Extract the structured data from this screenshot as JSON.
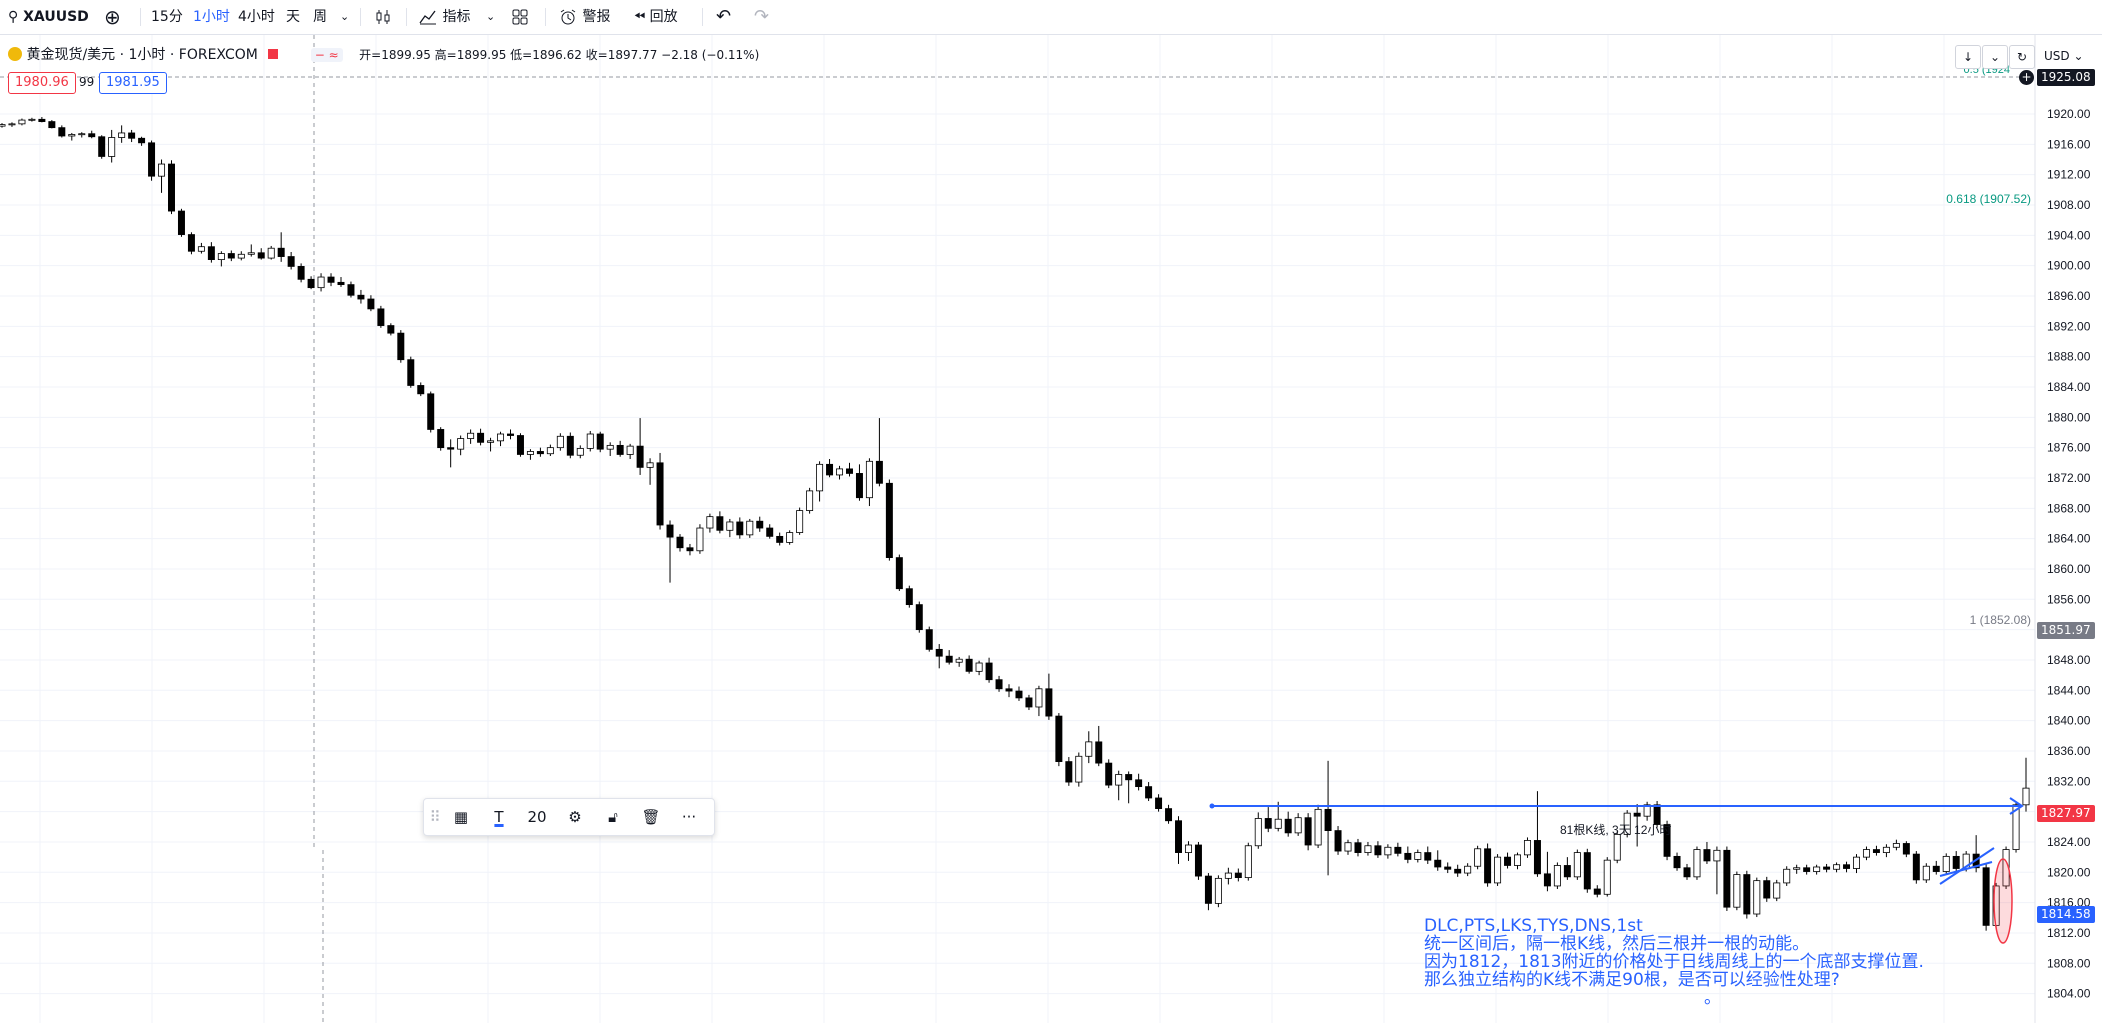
{
  "toolbar": {
    "symbol": "XAUUSD",
    "intervals": [
      "15分",
      "1小时",
      "4小时",
      "天",
      "周"
    ],
    "active_interval": "1小时",
    "indicators": "指标",
    "alert": "警报",
    "replay": "回放"
  },
  "legend": {
    "title": "黄金现货/美元 · 1小时 · FOREXCOM",
    "ohlc": "开=1899.95 高=1899.95 低=1896.62 收=1897.77 −2.18 (−0.11%)",
    "sell_price": "1980.96",
    "spread": "99",
    "buy_price": "1981.95"
  },
  "currency": "USD",
  "price_axis": {
    "labels": [
      "1920.00",
      "1916.00",
      "1912.00",
      "1908.00",
      "1904.00",
      "1900.00",
      "1896.00",
      "1892.00",
      "1888.00",
      "1884.00",
      "1880.00",
      "1876.00",
      "1872.00",
      "1868.00",
      "1864.00",
      "1860.00",
      "1856.00",
      "1852.00",
      "1848.00",
      "1844.00",
      "1840.00",
      "1836.00",
      "1832.00",
      "1828.00",
      "1824.00",
      "1820.00",
      "1816.00",
      "1812.00",
      "1808.00",
      "1804.00"
    ],
    "top_tag": "1925.08",
    "tag_1851": "1851.97",
    "tag_1827": "1827.97",
    "tag_1814": "1814.58"
  },
  "fib": {
    "level_618": "0.618 (1907.52)",
    "level_1": "1 (1852.08)",
    "level_05": "0.5 (1924"
  },
  "range_label": "81根K线, 3天 12小时",
  "annotation": {
    "line1": "DLC,PTS,LKS,TYS,DNS,1st",
    "line2": "统一区间后，隔一根K线，然后三根并一根的动能。",
    "line3": "因为1812，1813附近的价格处于日线周线上的一个底部支撑位置.",
    "line4": "那么独立结构的K线不满足90根，是否可以经验性处理?",
    "line5": "。"
  },
  "drawing_toolbar": {
    "font_size": "20"
  },
  "colors": {
    "up_body": "#ffffff",
    "down_body": "#000000",
    "wick": "#000000",
    "blue_line": "#2962ff",
    "sell": "#f23645",
    "buy": "#2962ff",
    "fib": "#089981"
  },
  "candles": [
    [
      1918.4,
      1918.8,
      1918.2,
      1918.6
    ],
    [
      1918.6,
      1918.9,
      1918.3,
      1918.7
    ],
    [
      1918.7,
      1919.4,
      1918.5,
      1919.2
    ],
    [
      1919.2,
      1919.5,
      1919.0,
      1919.3
    ],
    [
      1919.3,
      1919.6,
      1918.9,
      1919.0
    ],
    [
      1919.0,
      1919.2,
      1918.1,
      1918.2
    ],
    [
      1918.2,
      1918.5,
      1916.9,
      1917.1
    ],
    [
      1917.1,
      1917.5,
      1916.5,
      1917.3
    ],
    [
      1917.3,
      1917.6,
      1916.9,
      1917.4
    ],
    [
      1917.4,
      1917.8,
      1916.8,
      1917.0
    ],
    [
      1917.0,
      1917.2,
      1914.1,
      1914.4
    ],
    [
      1914.4,
      1917.9,
      1913.6,
      1916.9
    ],
    [
      1916.9,
      1918.5,
      1916.2,
      1917.5
    ],
    [
      1917.5,
      1917.9,
      1916.3,
      1916.8
    ],
    [
      1916.8,
      1917.0,
      1915.8,
      1916.2
    ],
    [
      1916.2,
      1916.5,
      1911.2,
      1911.8
    ],
    [
      1911.8,
      1914.0,
      1909.6,
      1913.4
    ],
    [
      1913.4,
      1913.9,
      1906.8,
      1907.2
    ],
    [
      1907.2,
      1907.5,
      1903.8,
      1904.1
    ],
    [
      1904.1,
      1904.4,
      1901.5,
      1901.9
    ],
    [
      1901.9,
      1903.0,
      1901.6,
      1902.5
    ],
    [
      1902.5,
      1903.1,
      1900.4,
      1900.8
    ],
    [
      1900.8,
      1901.9,
      1899.9,
      1901.6
    ],
    [
      1901.6,
      1902.0,
      1900.6,
      1901.0
    ],
    [
      1901.0,
      1901.9,
      1900.7,
      1901.5
    ],
    [
      1901.5,
      1902.8,
      1901.2,
      1901.7
    ],
    [
      1901.7,
      1902.3,
      1900.8,
      1901.0
    ],
    [
      1901.0,
      1902.6,
      1900.8,
      1902.3
    ],
    [
      1902.3,
      1904.4,
      1900.5,
      1901.2
    ],
    [
      1901.2,
      1901.8,
      1899.5,
      1899.9
    ],
    [
      1899.9,
      1900.3,
      1897.8,
      1898.2
    ],
    [
      1898.2,
      1898.6,
      1896.9,
      1897.1
    ],
    [
      1897.1,
      1899.0,
      1896.6,
      1898.5
    ],
    [
      1898.5,
      1899.0,
      1897.3,
      1897.8
    ],
    [
      1897.8,
      1898.5,
      1897.2,
      1897.5
    ],
    [
      1897.5,
      1897.9,
      1895.8,
      1896.1
    ],
    [
      1896.1,
      1896.8,
      1895.0,
      1895.6
    ],
    [
      1895.6,
      1896.1,
      1894.0,
      1894.3
    ],
    [
      1894.3,
      1894.7,
      1891.8,
      1892.1
    ],
    [
      1892.1,
      1892.4,
      1890.8,
      1891.1
    ],
    [
      1891.1,
      1891.5,
      1887.2,
      1887.6
    ],
    [
      1887.6,
      1888.0,
      1883.9,
      1884.2
    ],
    [
      1884.2,
      1884.6,
      1882.8,
      1883.1
    ],
    [
      1883.1,
      1883.4,
      1878.0,
      1878.4
    ],
    [
      1878.4,
      1878.7,
      1875.6,
      1876.0
    ],
    [
      1876.0,
      1877.1,
      1873.4,
      1875.8
    ],
    [
      1875.8,
      1877.6,
      1875.0,
      1877.2
    ],
    [
      1877.2,
      1878.4,
      1876.5,
      1877.9
    ],
    [
      1877.9,
      1878.5,
      1876.3,
      1876.7
    ],
    [
      1876.7,
      1877.3,
      1875.5,
      1876.9
    ],
    [
      1876.9,
      1878.1,
      1876.2,
      1877.8
    ],
    [
      1877.8,
      1878.4,
      1877.1,
      1877.6
    ],
    [
      1877.6,
      1877.9,
      1874.8,
      1875.1
    ],
    [
      1875.1,
      1875.8,
      1874.4,
      1875.5
    ],
    [
      1875.5,
      1876.0,
      1874.8,
      1875.2
    ],
    [
      1875.2,
      1876.4,
      1874.9,
      1876.0
    ],
    [
      1876.0,
      1877.9,
      1875.6,
      1877.5
    ],
    [
      1877.5,
      1878.0,
      1874.6,
      1875.0
    ],
    [
      1875.0,
      1876.3,
      1874.6,
      1875.9
    ],
    [
      1875.9,
      1878.2,
      1875.5,
      1877.8
    ],
    [
      1877.8,
      1878.1,
      1875.4,
      1875.8
    ],
    [
      1875.8,
      1876.7,
      1874.9,
      1876.3
    ],
    [
      1876.3,
      1876.9,
      1874.8,
      1875.1
    ],
    [
      1875.1,
      1876.5,
      1874.5,
      1876.2
    ],
    [
      1876.2,
      1879.9,
      1872.4,
      1873.4
    ],
    [
      1873.4,
      1874.6,
      1871.1,
      1874.0
    ],
    [
      1874.0,
      1875.3,
      1865.2,
      1865.8
    ],
    [
      1865.8,
      1866.4,
      1858.2,
      1864.2
    ],
    [
      1864.2,
      1864.6,
      1862.3,
      1862.8
    ],
    [
      1862.8,
      1863.3,
      1861.8,
      1862.4
    ],
    [
      1862.4,
      1865.9,
      1862.0,
      1865.4
    ],
    [
      1865.4,
      1867.3,
      1864.8,
      1866.9
    ],
    [
      1866.9,
      1867.6,
      1864.7,
      1865.1
    ],
    [
      1865.1,
      1866.6,
      1864.2,
      1866.2
    ],
    [
      1866.2,
      1866.8,
      1864.0,
      1864.5
    ],
    [
      1864.5,
      1866.6,
      1864.1,
      1866.3
    ],
    [
      1866.3,
      1866.9,
      1864.9,
      1865.4
    ],
    [
      1865.4,
      1865.9,
      1864.0,
      1864.3
    ],
    [
      1864.3,
      1864.8,
      1863.1,
      1863.5
    ],
    [
      1863.5,
      1865.1,
      1863.2,
      1864.8
    ],
    [
      1864.8,
      1868.1,
      1864.5,
      1867.7
    ],
    [
      1867.7,
      1870.7,
      1867.3,
      1870.3
    ],
    [
      1870.3,
      1874.2,
      1868.9,
      1873.8
    ],
    [
      1873.8,
      1874.5,
      1872.1,
      1872.4
    ],
    [
      1872.4,
      1873.6,
      1871.8,
      1873.2
    ],
    [
      1873.2,
      1874.0,
      1872.2,
      1872.6
    ],
    [
      1872.6,
      1873.8,
      1869.0,
      1869.4
    ],
    [
      1869.4,
      1874.6,
      1868.3,
      1874.2
    ],
    [
      1874.2,
      1879.9,
      1870.9,
      1871.3
    ],
    [
      1871.3,
      1871.8,
      1861.1,
      1861.5
    ],
    [
      1861.5,
      1861.9,
      1857.1,
      1857.4
    ],
    [
      1857.4,
      1857.8,
      1854.9,
      1855.3
    ],
    [
      1855.3,
      1855.7,
      1851.6,
      1852.0
    ],
    [
      1852.0,
      1852.4,
      1849.1,
      1849.4
    ],
    [
      1849.4,
      1850.1,
      1846.9,
      1848.5
    ],
    [
      1848.5,
      1849.3,
      1847.4,
      1847.7
    ],
    [
      1847.7,
      1848.4,
      1847.1,
      1848.1
    ],
    [
      1848.1,
      1848.6,
      1846.2,
      1846.5
    ],
    [
      1846.5,
      1847.9,
      1846.0,
      1847.6
    ],
    [
      1847.6,
      1848.3,
      1845.0,
      1845.4
    ],
    [
      1845.4,
      1845.9,
      1843.8,
      1844.2
    ],
    [
      1844.2,
      1844.8,
      1843.1,
      1843.9
    ],
    [
      1843.9,
      1844.5,
      1842.6,
      1843.0
    ],
    [
      1843.0,
      1843.4,
      1841.4,
      1841.8
    ],
    [
      1841.8,
      1844.6,
      1840.6,
      1844.2
    ],
    [
      1844.2,
      1846.2,
      1840.1,
      1840.6
    ],
    [
      1840.6,
      1841.0,
      1834.0,
      1834.6
    ],
    [
      1834.6,
      1835.2,
      1831.4,
      1831.9
    ],
    [
      1831.9,
      1835.8,
      1831.3,
      1835.3
    ],
    [
      1835.3,
      1838.6,
      1834.4,
      1837.2
    ],
    [
      1837.2,
      1839.3,
      1834.0,
      1834.4
    ],
    [
      1834.4,
      1834.9,
      1831.1,
      1831.5
    ],
    [
      1831.5,
      1833.4,
      1829.5,
      1832.9
    ],
    [
      1832.9,
      1833.3,
      1829.1,
      1832.2
    ],
    [
      1832.2,
      1833.0,
      1830.8,
      1831.3
    ],
    [
      1831.3,
      1831.9,
      1829.4,
      1829.8
    ],
    [
      1829.8,
      1830.3,
      1828.0,
      1828.4
    ],
    [
      1828.4,
      1828.9,
      1826.4,
      1826.8
    ],
    [
      1826.8,
      1827.4,
      1821.1,
      1822.6
    ],
    [
      1822.6,
      1824.1,
      1821.5,
      1823.6
    ],
    [
      1823.6,
      1824.0,
      1819.0,
      1819.5
    ],
    [
      1819.5,
      1819.9,
      1815.0,
      1815.9
    ],
    [
      1815.9,
      1819.6,
      1815.4,
      1819.2
    ],
    [
      1819.2,
      1820.6,
      1818.4,
      1819.9
    ],
    [
      1819.9,
      1820.5,
      1818.8,
      1819.3
    ],
    [
      1819.3,
      1823.9,
      1818.9,
      1823.5
    ],
    [
      1823.5,
      1827.9,
      1823.1,
      1827.1
    ],
    [
      1827.1,
      1828.6,
      1825.3,
      1825.8
    ],
    [
      1825.8,
      1829.3,
      1825.4,
      1827.0
    ],
    [
      1827.0,
      1828.0,
      1824.7,
      1825.2
    ],
    [
      1825.2,
      1827.8,
      1824.8,
      1827.2
    ],
    [
      1827.2,
      1827.8,
      1822.9,
      1823.6
    ],
    [
      1823.6,
      1828.9,
      1823.2,
      1828.3
    ],
    [
      1828.3,
      1834.7,
      1819.6,
      1825.5
    ],
    [
      1825.5,
      1826.1,
      1822.3,
      1822.8
    ],
    [
      1822.8,
      1824.3,
      1822.3,
      1823.9
    ],
    [
      1823.9,
      1824.4,
      1822.1,
      1822.6
    ],
    [
      1822.6,
      1824.0,
      1822.2,
      1823.5
    ],
    [
      1823.5,
      1824.1,
      1821.9,
      1822.3
    ],
    [
      1822.3,
      1823.7,
      1821.8,
      1823.3
    ],
    [
      1823.3,
      1823.9,
      1822.1,
      1822.5
    ],
    [
      1822.5,
      1823.4,
      1821.2,
      1821.7
    ],
    [
      1821.7,
      1823.0,
      1821.3,
      1822.6
    ],
    [
      1822.6,
      1823.4,
      1821.1,
      1821.6
    ],
    [
      1821.6,
      1822.9,
      1820.2,
      1820.7
    ],
    [
      1820.7,
      1821.3,
      1819.9,
      1820.4
    ],
    [
      1820.4,
      1821.0,
      1819.4,
      1819.9
    ],
    [
      1819.9,
      1821.2,
      1819.5,
      1820.8
    ],
    [
      1820.8,
      1823.5,
      1820.4,
      1823.1
    ],
    [
      1823.1,
      1823.8,
      1818.1,
      1818.6
    ],
    [
      1818.6,
      1822.4,
      1818.2,
      1822.0
    ],
    [
      1822.0,
      1822.6,
      1820.5,
      1820.9
    ],
    [
      1820.9,
      1822.6,
      1820.4,
      1822.3
    ],
    [
      1822.3,
      1824.6,
      1821.9,
      1824.2
    ],
    [
      1824.2,
      1830.7,
      1819.4,
      1819.8
    ],
    [
      1819.8,
      1822.7,
      1817.5,
      1818.2
    ],
    [
      1818.2,
      1821.3,
      1817.8,
      1820.9
    ],
    [
      1820.9,
      1822.0,
      1819.0,
      1819.4
    ],
    [
      1819.4,
      1823.0,
      1819.0,
      1822.6
    ],
    [
      1822.6,
      1823.1,
      1817.3,
      1817.8
    ],
    [
      1817.8,
      1818.3,
      1816.7,
      1817.1
    ],
    [
      1817.1,
      1822.0,
      1816.8,
      1821.6
    ],
    [
      1821.6,
      1825.4,
      1821.2,
      1825.0
    ],
    [
      1825.0,
      1828.2,
      1824.6,
      1827.8
    ],
    [
      1827.8,
      1829.0,
      1823.4,
      1827.4
    ],
    [
      1827.4,
      1829.3,
      1826.8,
      1828.9
    ],
    [
      1828.9,
      1829.4,
      1825.9,
      1826.3
    ],
    [
      1826.3,
      1826.8,
      1821.6,
      1822.1
    ],
    [
      1822.1,
      1822.6,
      1820.2,
      1820.6
    ],
    [
      1820.6,
      1821.1,
      1819.0,
      1819.4
    ],
    [
      1819.4,
      1823.4,
      1819.0,
      1823.0
    ],
    [
      1823.0,
      1824.0,
      1821.1,
      1821.5
    ],
    [
      1821.5,
      1823.4,
      1817.1,
      1822.9
    ],
    [
      1822.9,
      1823.4,
      1814.9,
      1815.4
    ],
    [
      1815.4,
      1820.1,
      1815.0,
      1819.7
    ],
    [
      1819.7,
      1820.2,
      1813.9,
      1814.5
    ],
    [
      1814.5,
      1819.3,
      1814.1,
      1818.9
    ],
    [
      1818.9,
      1819.4,
      1816.1,
      1816.6
    ],
    [
      1816.6,
      1819.0,
      1816.2,
      1818.6
    ],
    [
      1818.6,
      1820.8,
      1818.2,
      1820.4
    ],
    [
      1820.4,
      1821.0,
      1819.8,
      1820.6
    ],
    [
      1820.6,
      1821.0,
      1819.7,
      1820.1
    ],
    [
      1820.1,
      1821.0,
      1819.7,
      1820.7
    ],
    [
      1820.7,
      1821.1,
      1820.0,
      1820.4
    ],
    [
      1820.4,
      1821.3,
      1820.0,
      1821.0
    ],
    [
      1821.0,
      1821.4,
      1820.0,
      1820.5
    ],
    [
      1820.5,
      1822.4,
      1819.9,
      1822.0
    ],
    [
      1822.0,
      1823.4,
      1821.6,
      1823.0
    ],
    [
      1823.0,
      1823.5,
      1822.2,
      1822.6
    ],
    [
      1822.6,
      1823.7,
      1822.0,
      1823.3
    ],
    [
      1823.3,
      1824.3,
      1822.9,
      1823.8
    ],
    [
      1823.8,
      1824.1,
      1822.0,
      1822.4
    ],
    [
      1822.4,
      1822.8,
      1818.5,
      1819.0
    ],
    [
      1819.0,
      1821.2,
      1818.6,
      1820.8
    ],
    [
      1820.8,
      1821.5,
      1819.7,
      1820.1
    ],
    [
      1820.1,
      1822.5,
      1819.8,
      1822.1
    ],
    [
      1822.1,
      1822.8,
      1820.1,
      1820.5
    ],
    [
      1820.5,
      1822.8,
      1820.1,
      1822.4
    ],
    [
      1822.4,
      1824.9,
      1820.0,
      1820.6
    ],
    [
      1820.6,
      1821.2,
      1812.3,
      1813.0
    ],
    [
      1813.0,
      1818.6,
      1812.6,
      1818.2
    ],
    [
      1818.2,
      1823.4,
      1817.8,
      1823.0
    ],
    [
      1823.0,
      1829.3,
      1822.6,
      1828.9
    ],
    [
      1828.9,
      1835.1,
      1828.0,
      1831.1
    ]
  ]
}
